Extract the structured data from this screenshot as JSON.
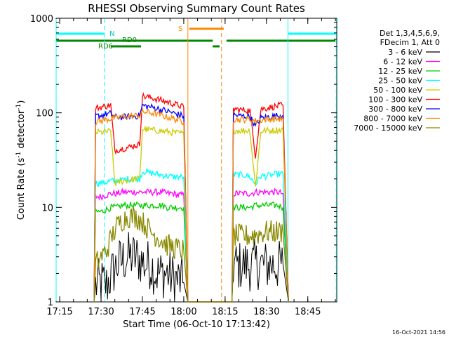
{
  "chart_data": {
    "type": "line",
    "title": "RHESSI Observing Summary Count Rates",
    "xlabel": "Start Time (06-Oct-10 17:13:42)",
    "ylabel_main": "Count Rate (s",
    "ylabel_sup1": "-1",
    "ylabel_mid": " detector",
    "ylabel_sup2": "-1",
    "ylabel_end": ")",
    "y_scale": "log",
    "ylim": [
      1,
      1000
    ],
    "xlim_minutes": [
      1033.7,
      1135.5
    ],
    "x_ticks": [
      {
        "label": "17:15",
        "minute": 1035
      },
      {
        "label": "17:30",
        "minute": 1050
      },
      {
        "label": "17:45",
        "minute": 1065
      },
      {
        "label": "18:00",
        "minute": 1080
      },
      {
        "label": "18:15",
        "minute": 1095
      },
      {
        "label": "18:30",
        "minute": 1110
      },
      {
        "label": "18:45",
        "minute": 1125
      }
    ],
    "y_ticks": [
      {
        "label": "1",
        "value": 1
      },
      {
        "label": "10",
        "value": 10
      },
      {
        "label": "100",
        "value": 100
      },
      {
        "label": "1000",
        "value": 1000
      }
    ],
    "legend_header": [
      "Det 1,3,4,5,6,9,",
      "FDecim 1, Att 0"
    ],
    "legend_position": "right",
    "date_stamp": "16-Oct-2021 14:56",
    "flag_labels": {
      "n": "N",
      "s": "S",
      "rd0": "RD0",
      "rd6": "RD6"
    },
    "flags": {
      "night_segments": [
        [
          1033.7,
          1051.2
        ],
        [
          1117.8,
          1135.2
        ]
      ],
      "saa_segments": [
        [
          1082.0,
          1094.5
        ]
      ],
      "rd0_segments": [
        [
          1033.7,
          1090.5
        ],
        [
          1095.5,
          1135.0
        ]
      ],
      "rd6_segments": [
        [
          1053.5,
          1064.5
        ],
        [
          1090.5,
          1093.0
        ]
      ]
    },
    "markers": {
      "cyan_solid": [
        1033.7,
        1117.8
      ],
      "cyan_dashed": [
        1051.2,
        1135.3
      ],
      "orange_solid": [
        1081.5
      ],
      "orange_dashed": [
        1093.7
      ]
    },
    "series": [
      {
        "name": "3 - 6 keV",
        "color": "#000000",
        "x": [
          1047.5,
          1048,
          1050,
          1052,
          1054,
          1056,
          1058,
          1060,
          1062,
          1064,
          1066,
          1068,
          1070,
          1072,
          1074,
          1076,
          1078,
          1080,
          1081.5,
          1097.5,
          1098,
          1100,
          1102,
          1104,
          1106,
          1108,
          1110,
          1112,
          1114,
          1116,
          1118
        ],
        "y": [
          1,
          1.5,
          1.6,
          1.5,
          2.0,
          2.5,
          2.8,
          3.0,
          3.0,
          2.8,
          2.5,
          2.5,
          2.0,
          2.0,
          2.0,
          1.8,
          1.7,
          1.6,
          1,
          1,
          2.5,
          2.4,
          2.5,
          2.4,
          2.5,
          2.5,
          2.4,
          2.5,
          2.4,
          2.5,
          1
        ]
      },
      {
        "name": "6 - 12 keV",
        "color": "#ff00ff",
        "x": [
          1047.5,
          1048,
          1050,
          1052,
          1054,
          1056,
          1058,
          1060,
          1062,
          1064,
          1066,
          1068,
          1070,
          1072,
          1074,
          1076,
          1078,
          1080,
          1081.5,
          1097.5,
          1098,
          1100,
          1102,
          1104,
          1106,
          1108,
          1110,
          1112,
          1114,
          1116,
          1118
        ],
        "y": [
          1,
          13,
          13,
          13.5,
          14,
          14,
          14.5,
          14.5,
          14.5,
          14.5,
          14.5,
          14.5,
          14.5,
          14.5,
          14,
          14,
          13.5,
          13.5,
          1,
          1,
          14,
          14,
          14,
          14,
          14.5,
          14.5,
          14.5,
          14.5,
          14.5,
          14,
          1
        ]
      },
      {
        "name": "12 - 25 keV",
        "color": "#00cc00",
        "x": [
          1047.5,
          1048,
          1050,
          1052,
          1054,
          1056,
          1058,
          1060,
          1062,
          1064,
          1066,
          1068,
          1070,
          1072,
          1074,
          1076,
          1078,
          1080,
          1081.5,
          1097.5,
          1098,
          1100,
          1102,
          1104,
          1106,
          1108,
          1110,
          1112,
          1114,
          1116,
          1118
        ],
        "y": [
          1,
          9,
          9,
          9.5,
          10,
          10,
          10.5,
          10.5,
          10.5,
          10.5,
          10.5,
          10.5,
          10.5,
          10.5,
          10,
          10,
          10,
          10,
          1,
          1,
          10,
          10,
          10,
          10,
          10.5,
          10.5,
          10.5,
          10.5,
          10.5,
          10,
          1
        ]
      },
      {
        "name": "25 - 50 keV",
        "color": "#00ffff",
        "x": [
          1047.5,
          1048,
          1050,
          1052,
          1053.5,
          1055,
          1058,
          1060,
          1062,
          1064,
          1065,
          1066,
          1068,
          1070,
          1072,
          1074,
          1076,
          1078,
          1080,
          1081.5,
          1097.5,
          1098,
          1100,
          1102,
          1104,
          1106,
          1108,
          1110,
          1112,
          1114,
          1116,
          1118
        ],
        "y": [
          1,
          18,
          18,
          18.5,
          19,
          19,
          19.5,
          20,
          20,
          20,
          24,
          24,
          23,
          22.5,
          22,
          21.5,
          21,
          21,
          21,
          1,
          1,
          22,
          22,
          22,
          21,
          17.5,
          21.5,
          21.5,
          22,
          22.5,
          22.5,
          1
        ]
      },
      {
        "name": "50 - 100 keV",
        "color": "#cccc00",
        "x": [
          1047.5,
          1048,
          1050,
          1052,
          1053.5,
          1055,
          1058,
          1060,
          1062,
          1064,
          1065,
          1066,
          1068,
          1070,
          1072,
          1074,
          1076,
          1078,
          1080,
          1081.5,
          1097.5,
          1098,
          1100,
          1102,
          1104,
          1106,
          1108,
          1110,
          1112,
          1114,
          1116,
          1118
        ],
        "y": [
          1,
          62,
          62,
          63,
          64,
          18,
          19,
          19.5,
          20,
          20,
          67,
          67,
          66,
          65,
          64,
          63,
          62,
          61,
          60,
          1,
          1,
          65,
          65,
          65,
          65,
          16.5,
          64,
          65,
          65,
          66,
          66,
          1
        ]
      },
      {
        "name": "100 - 300 keV",
        "color": "#ff0000",
        "x": [
          1047.5,
          1048,
          1050,
          1052,
          1053.5,
          1055,
          1058,
          1060,
          1062,
          1064,
          1065,
          1066,
          1068,
          1070,
          1072,
          1074,
          1076,
          1078,
          1080,
          1081.5,
          1097.5,
          1098,
          1100,
          1102,
          1104,
          1106,
          1108,
          1110,
          1112,
          1114,
          1116,
          1118
        ],
        "y": [
          1,
          112,
          115,
          118,
          120,
          40,
          42,
          43,
          45,
          46,
          150,
          148,
          145,
          140,
          135,
          130,
          125,
          120,
          115,
          1,
          1,
          110,
          108,
          107,
          106,
          35,
          110,
          112,
          115,
          118,
          120,
          1
        ]
      },
      {
        "name": "300 - 800 keV",
        "color": "#0000ff",
        "x": [
          1047.5,
          1048,
          1050,
          1052,
          1053.5,
          1055,
          1058,
          1060,
          1062,
          1064,
          1065,
          1066,
          1068,
          1070,
          1072,
          1074,
          1076,
          1078,
          1080,
          1081.5,
          1097.5,
          1098,
          1100,
          1102,
          1104,
          1106,
          1108,
          1110,
          1112,
          1114,
          1116,
          1118
        ],
        "y": [
          1,
          92,
          94,
          97,
          98,
          90,
          90,
          91,
          92,
          93,
          120,
          118,
          115,
          112,
          108,
          104,
          100,
          96,
          92,
          1,
          1,
          95,
          93,
          92,
          92,
          72,
          88,
          90,
          92,
          93,
          94,
          1
        ]
      },
      {
        "name": "800 - 7000 keV",
        "color": "#ff8800",
        "x": [
          1047.5,
          1048,
          1050,
          1052,
          1053.5,
          1055,
          1058,
          1060,
          1062,
          1064,
          1065,
          1066,
          1068,
          1070,
          1072,
          1074,
          1076,
          1078,
          1080,
          1081.5,
          1097.5,
          1098,
          1100,
          1102,
          1104,
          1106,
          1108,
          1110,
          1112,
          1114,
          1116,
          1118
        ],
        "y": [
          1,
          80,
          82,
          85,
          87,
          88,
          90,
          92,
          93,
          94,
          102,
          102,
          100,
          97,
          94,
          90,
          87,
          84,
          80,
          1,
          1,
          85,
          85,
          85,
          85,
          82,
          84,
          85,
          86,
          86,
          86,
          1
        ]
      },
      {
        "name": "7000 - 15000 keV",
        "color": "#888800",
        "x": [
          1047.5,
          1048,
          1050,
          1052,
          1054,
          1056,
          1058,
          1060,
          1062,
          1064,
          1066,
          1068,
          1070,
          1072,
          1074,
          1076,
          1078,
          1080,
          1081.5,
          1097.5,
          1098,
          1100,
          1102,
          1104,
          1106,
          1108,
          1110,
          1112,
          1114,
          1116,
          1118
        ],
        "y": [
          1,
          2.5,
          3.0,
          3.5,
          5.0,
          6.5,
          7.5,
          8.0,
          8.0,
          7.5,
          6.5,
          5.5,
          5.0,
          4.5,
          4.0,
          3.8,
          3.6,
          3.5,
          1,
          1,
          5.0,
          5.0,
          5.0,
          5.0,
          5.2,
          5.3,
          5.5,
          5.5,
          5.5,
          5.5,
          1
        ]
      }
    ]
  }
}
